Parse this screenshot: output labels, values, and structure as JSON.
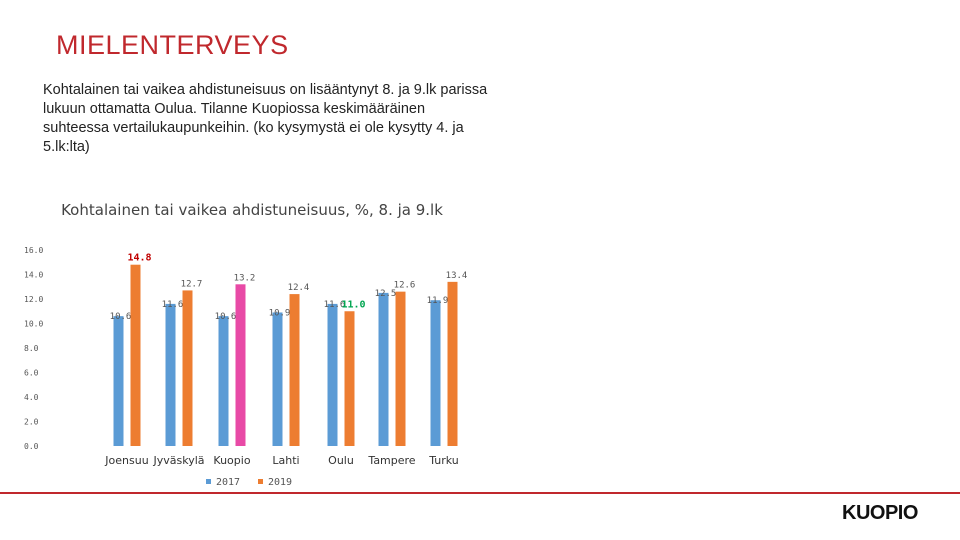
{
  "slide": {
    "title": "MIELENTERVEYS",
    "body": "Kohtalainen tai vaikea ahdistuneisuus on lisääntynyt 8. ja 9.lk parissa lukuun ottamatta Oulua. Tilanne Kuopiossa keskimääräinen suhteessa vertailukaupunkeihin. (ko kysymystä ei ole kysytty 4. ja 5.lk:lta)",
    "logo": "KUOPIO"
  },
  "colors": {
    "accent": "#c0282d",
    "series_2017": "#5b9bd5",
    "series_2019": "#ed7d31",
    "highlight_kuopio_2019": "#e84aa6",
    "label_max": "#c00000",
    "label_min": "#00a550"
  },
  "chart_data": {
    "type": "bar",
    "title": "Kohtalainen tai vaikea ahdistuneisuus, %, 8. ja 9.lk",
    "categories": [
      "Joensuu",
      "Jyväskylä",
      "Kuopio",
      "Lahti",
      "Oulu",
      "Tampere",
      "Turku"
    ],
    "series": [
      {
        "name": "2017",
        "values": [
          10.6,
          11.6,
          10.6,
          10.9,
          11.6,
          12.5,
          11.9
        ],
        "labels": [
          "10.6",
          "11.6",
          "10.6",
          "10.9",
          "11.6",
          "12.5",
          "11.9"
        ]
      },
      {
        "name": "2019",
        "values": [
          14.8,
          12.7,
          13.2,
          12.4,
          11.0,
          12.6,
          13.4
        ],
        "labels": [
          "14.8",
          "12.7",
          "13.2",
          "12.4",
          "11.0",
          "12.6",
          "13.4"
        ]
      }
    ],
    "highlights": [
      {
        "series": "2019",
        "category": "Kuopio",
        "meaning": "highlighted bar"
      },
      {
        "series": "2019",
        "category": "Joensuu",
        "meaning": "maximum label"
      },
      {
        "series": "2019",
        "category": "Oulu",
        "meaning": "minimum label"
      }
    ],
    "yticks": [
      "0.0",
      "2.0",
      "4.0",
      "6.0",
      "8.0",
      "10.0",
      "12.0",
      "14.0",
      "16.0"
    ],
    "ylim": [
      0,
      16
    ],
    "grid": false,
    "legend_position": "bottom"
  }
}
